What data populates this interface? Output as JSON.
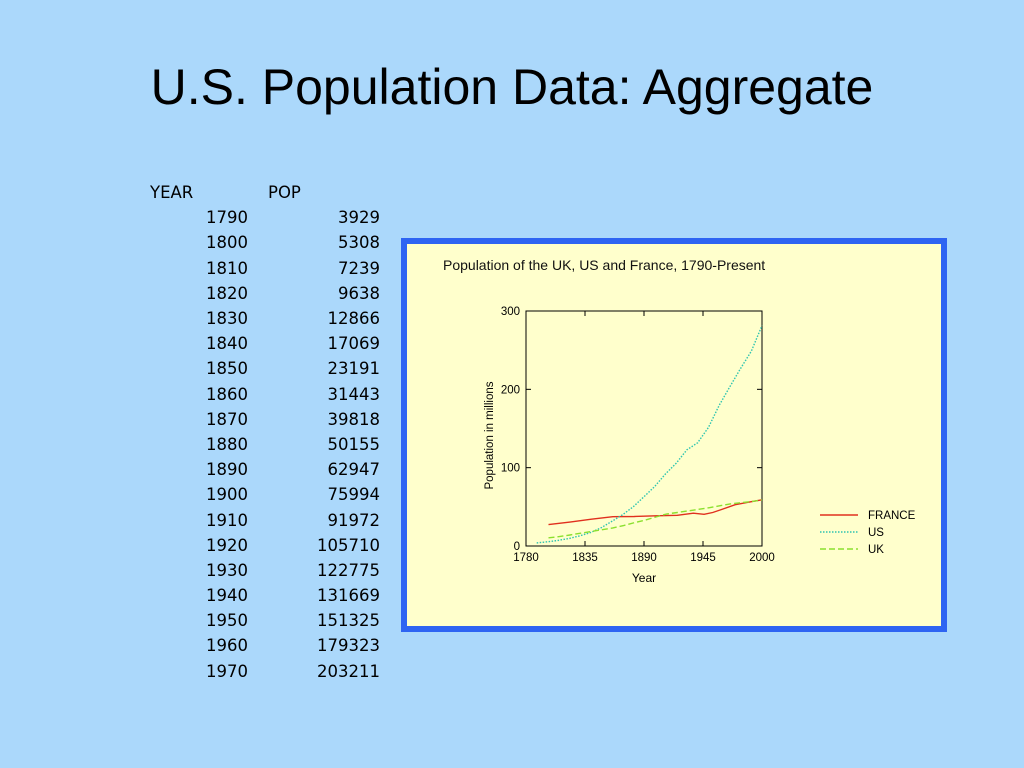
{
  "slide": {
    "title": "U.S. Population Data:  Aggregate"
  },
  "table": {
    "headers": {
      "year": "YEAR",
      "pop": "POP"
    },
    "rows": [
      {
        "year": "1790",
        "pop": "3929"
      },
      {
        "year": "1800",
        "pop": "5308"
      },
      {
        "year": "1810",
        "pop": "7239"
      },
      {
        "year": "1820",
        "pop": "9638"
      },
      {
        "year": "1830",
        "pop": "12866"
      },
      {
        "year": "1840",
        "pop": "17069"
      },
      {
        "year": "1850",
        "pop": "23191"
      },
      {
        "year": "1860",
        "pop": "31443"
      },
      {
        "year": "1870",
        "pop": "39818"
      },
      {
        "year": "1880",
        "pop": "50155"
      },
      {
        "year": "1890",
        "pop": "62947"
      },
      {
        "year": "1900",
        "pop": "75994"
      },
      {
        "year": "1910",
        "pop": "91972"
      },
      {
        "year": "1920",
        "pop": "105710"
      },
      {
        "year": "1930",
        "pop": "122775"
      },
      {
        "year": "1940",
        "pop": "131669"
      },
      {
        "year": "1950",
        "pop": "151325"
      },
      {
        "year": "1960",
        "pop": "179323"
      },
      {
        "year": "1970",
        "pop": "203211"
      }
    ]
  },
  "chart_data": {
    "type": "line",
    "title": "Population of the UK, US and France, 1790-Present",
    "xlabel": "Year",
    "ylabel": "Population in millions",
    "xlim": [
      1780,
      2000
    ],
    "ylim": [
      0,
      300
    ],
    "xticks": [
      1780,
      1835,
      1890,
      1945,
      2000
    ],
    "yticks": [
      0,
      100,
      200,
      300
    ],
    "grid": false,
    "legend_position": "right-bottom",
    "series": [
      {
        "name": "FRANCE",
        "color": "#e0301e",
        "style": "solid",
        "x": [
          1801,
          1821,
          1841,
          1861,
          1881,
          1901,
          1921,
          1936,
          1946,
          1954,
          1962,
          1975,
          1990,
          2000
        ],
        "y": [
          27.3,
          30.5,
          34.2,
          37.4,
          37.7,
          38.5,
          39.2,
          41.9,
          40.5,
          42.8,
          46.5,
          52.7,
          56.6,
          59.0
        ]
      },
      {
        "name": "US",
        "color": "#2ec4b0",
        "style": "dotted",
        "x": [
          1790,
          1800,
          1810,
          1820,
          1830,
          1840,
          1850,
          1860,
          1870,
          1880,
          1890,
          1900,
          1910,
          1920,
          1930,
          1940,
          1950,
          1960,
          1970,
          1980,
          1990,
          2000
        ],
        "y": [
          3.9,
          5.3,
          7.2,
          9.6,
          12.9,
          17.1,
          23.2,
          31.4,
          39.8,
          50.2,
          62.9,
          76.0,
          92.0,
          105.7,
          122.8,
          131.7,
          151.3,
          179.3,
          203.2,
          226.5,
          248.7,
          281.4
        ]
      },
      {
        "name": "UK",
        "color": "#8be02e",
        "style": "dashed",
        "x": [
          1801,
          1811,
          1821,
          1831,
          1841,
          1851,
          1861,
          1871,
          1881,
          1891,
          1901,
          1911,
          1921,
          1931,
          1951,
          1961,
          1971,
          1981,
          1991,
          2000
        ],
        "y": [
          10.5,
          12.0,
          14.1,
          16.3,
          18.5,
          20.8,
          23.1,
          26.1,
          29.7,
          33.0,
          37.0,
          40.8,
          42.8,
          44.8,
          48.9,
          51.4,
          53.9,
          55.4,
          57.0,
          58.8
        ]
      }
    ]
  }
}
